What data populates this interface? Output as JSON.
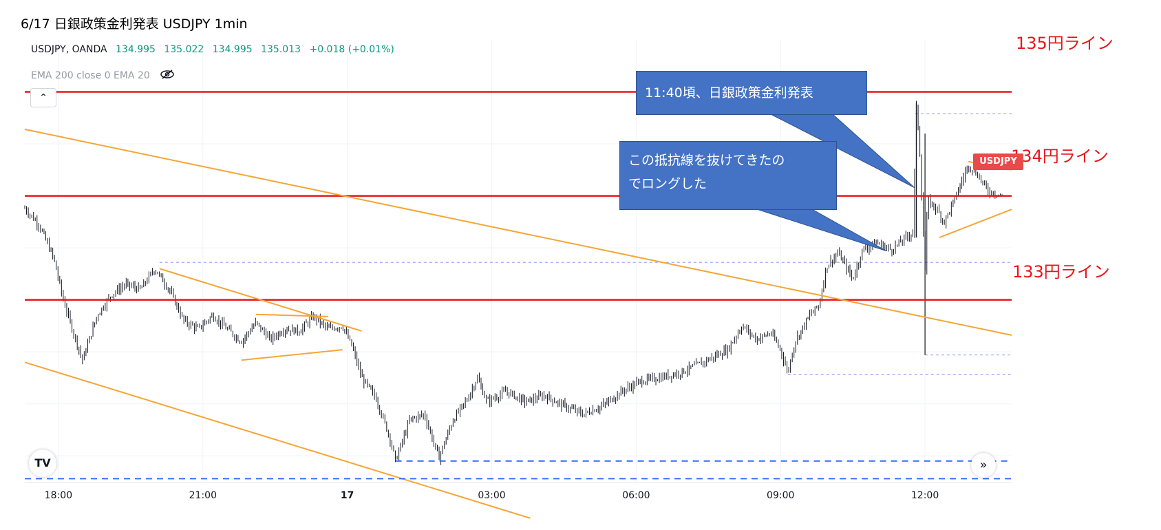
{
  "title": "6/17 日銀政策金利発表 USDJPY 1min",
  "legend": {
    "symbol": "USDJPY, OANDA",
    "open": "134.995",
    "high": "135.022",
    "low": "134.995",
    "close": "135.013",
    "change": "+0.018 (+0.01%)"
  },
  "indicator": {
    "label": "EMA 200 close 0 EMA 20",
    "icon": "eye-crossed-icon"
  },
  "price_badge": "USDJPY",
  "tv_logo": "TV",
  "collapse_glyph": "⌃",
  "scroll_glyph": "»",
  "annotations": {
    "callout_1": "11:40頃、日銀政策金利発表",
    "callout_2_line1": "この抵抗線を抜けてきたの",
    "callout_2_line2": "でロングした",
    "level_135": "135円ライン",
    "level_134": "134円ライン",
    "level_133": "133円ライン"
  },
  "colors": {
    "level_line": "#e8161b",
    "trend_line": "#f7a534",
    "dashed_line": "#2962ff",
    "dotted_line": "#9ba9f5",
    "candle": "#131722",
    "callout_fill": "#4472c4"
  },
  "chart_data": {
    "type": "candlestick",
    "title": "6/17 日銀政策金利発表 USDJPY 1min",
    "x_tick_labels": [
      "18:00",
      "21:00",
      "17",
      "03:00",
      "06:00",
      "09:00",
      "12:00"
    ],
    "x_ticks_time_h": [
      18,
      21,
      24,
      27,
      30,
      33,
      36
    ],
    "x_range_time_h": [
      17.3,
      37.8
    ],
    "y_range": [
      131.25,
      135.5
    ],
    "horizontal_levels": [
      135,
      134,
      133
    ],
    "price_path": [
      {
        "t": 17.3,
        "p": 133.88
      },
      {
        "t": 17.6,
        "p": 133.72
      },
      {
        "t": 17.9,
        "p": 133.4
      },
      {
        "t": 18.1,
        "p": 133.0
      },
      {
        "t": 18.3,
        "p": 132.7
      },
      {
        "t": 18.5,
        "p": 132.42
      },
      {
        "t": 18.8,
        "p": 132.85
      },
      {
        "t": 19.1,
        "p": 133.05
      },
      {
        "t": 19.4,
        "p": 133.15
      },
      {
        "t": 19.7,
        "p": 133.1
      },
      {
        "t": 20.0,
        "p": 133.3
      },
      {
        "t": 20.3,
        "p": 133.1
      },
      {
        "t": 20.6,
        "p": 132.8
      },
      {
        "t": 20.9,
        "p": 132.72
      },
      {
        "t": 21.2,
        "p": 132.85
      },
      {
        "t": 21.5,
        "p": 132.72
      },
      {
        "t": 21.8,
        "p": 132.6
      },
      {
        "t": 22.1,
        "p": 132.78
      },
      {
        "t": 22.4,
        "p": 132.62
      },
      {
        "t": 22.7,
        "p": 132.72
      },
      {
        "t": 23.0,
        "p": 132.7
      },
      {
        "t": 23.3,
        "p": 132.84
      },
      {
        "t": 23.6,
        "p": 132.72
      },
      {
        "t": 23.9,
        "p": 132.75
      },
      {
        "t": 24.1,
        "p": 132.55
      },
      {
        "t": 24.3,
        "p": 132.25
      },
      {
        "t": 24.6,
        "p": 132.05
      },
      {
        "t": 24.9,
        "p": 131.65
      },
      {
        "t": 25.0,
        "p": 131.45
      },
      {
        "t": 25.3,
        "p": 131.85
      },
      {
        "t": 25.6,
        "p": 131.9
      },
      {
        "t": 25.9,
        "p": 131.48
      },
      {
        "t": 26.2,
        "p": 131.85
      },
      {
        "t": 26.5,
        "p": 132.05
      },
      {
        "t": 26.7,
        "p": 132.25
      },
      {
        "t": 26.9,
        "p": 132.02
      },
      {
        "t": 27.3,
        "p": 132.12
      },
      {
        "t": 27.7,
        "p": 132.02
      },
      {
        "t": 28.1,
        "p": 132.08
      },
      {
        "t": 28.5,
        "p": 131.98
      },
      {
        "t": 28.9,
        "p": 131.9
      },
      {
        "t": 29.3,
        "p": 131.98
      },
      {
        "t": 29.7,
        "p": 132.12
      },
      {
        "t": 30.1,
        "p": 132.22
      },
      {
        "t": 30.5,
        "p": 132.25
      },
      {
        "t": 30.9,
        "p": 132.3
      },
      {
        "t": 31.3,
        "p": 132.38
      },
      {
        "t": 31.6,
        "p": 132.45
      },
      {
        "t": 31.9,
        "p": 132.52
      },
      {
        "t": 32.2,
        "p": 132.75
      },
      {
        "t": 32.5,
        "p": 132.62
      },
      {
        "t": 32.8,
        "p": 132.68
      },
      {
        "t": 33.0,
        "p": 132.52
      },
      {
        "t": 33.15,
        "p": 132.3
      },
      {
        "t": 33.3,
        "p": 132.6
      },
      {
        "t": 33.6,
        "p": 132.85
      },
      {
        "t": 33.8,
        "p": 132.95
      },
      {
        "t": 33.95,
        "p": 133.32
      },
      {
        "t": 34.2,
        "p": 133.45
      },
      {
        "t": 34.5,
        "p": 133.2
      },
      {
        "t": 34.7,
        "p": 133.48
      },
      {
        "t": 35.0,
        "p": 133.55
      },
      {
        "t": 35.3,
        "p": 133.48
      },
      {
        "t": 35.6,
        "p": 133.6
      },
      {
        "t": 35.75,
        "p": 133.65
      },
      {
        "t": 35.82,
        "p": 134.85
      },
      {
        "t": 35.88,
        "p": 134.55
      },
      {
        "t": 36.0,
        "p": 133.25
      },
      {
        "t": 36.05,
        "p": 133.95
      },
      {
        "t": 36.2,
        "p": 133.9
      },
      {
        "t": 36.4,
        "p": 133.75
      },
      {
        "t": 36.6,
        "p": 133.95
      },
      {
        "t": 36.9,
        "p": 134.3
      },
      {
        "t": 37.1,
        "p": 134.2
      },
      {
        "t": 37.3,
        "p": 134.05
      },
      {
        "t": 37.5,
        "p": 134.02
      },
      {
        "t": 37.6,
        "p": 134.0
      }
    ],
    "trend_lines": [
      {
        "name": "upper-channel",
        "from": [
          17.3,
          134.64
        ],
        "to": [
          37.8,
          132.66
        ]
      },
      {
        "name": "lower-channel",
        "from": [
          17.3,
          132.4
        ],
        "to": [
          27.8,
          130.9
        ]
      },
      {
        "name": "resistance",
        "from": [
          20.1,
          133.3
        ],
        "to": [
          24.3,
          132.7
        ]
      },
      {
        "name": "triangle-top",
        "from": [
          22.1,
          132.86
        ],
        "to": [
          23.6,
          132.84
        ]
      },
      {
        "name": "triangle-bottom",
        "from": [
          21.8,
          132.42
        ],
        "to": [
          23.9,
          132.52
        ]
      },
      {
        "name": "pennant-top",
        "from": [
          36.9,
          134.33
        ],
        "to": [
          37.8,
          134.25
        ]
      },
      {
        "name": "pennant-bottom",
        "from": [
          36.3,
          133.6
        ],
        "to": [
          37.8,
          133.87
        ]
      }
    ],
    "dotted_levels": [
      {
        "from": 20.1,
        "to": 37.8,
        "p": 133.36
      },
      {
        "from": 35.8,
        "to": 37.8,
        "p": 134.79
      },
      {
        "from": 36.0,
        "to": 37.8,
        "p": 132.47
      },
      {
        "from": 33.15,
        "to": 37.8,
        "p": 132.28
      }
    ],
    "dashed_levels": [
      {
        "from": 25.0,
        "to": 37.8,
        "p": 131.45
      },
      {
        "from": 17.3,
        "to": 37.8,
        "p": 131.28
      }
    ],
    "grid": true,
    "legend": "top-left"
  }
}
